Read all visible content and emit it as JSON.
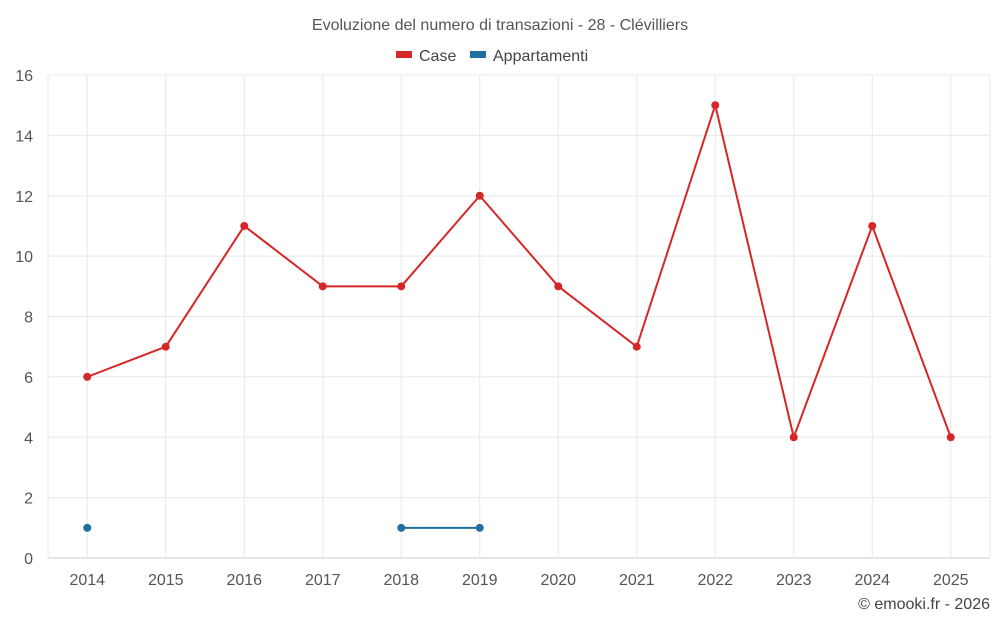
{
  "chart_data": {
    "type": "line",
    "title": "Evoluzione del numero di transazioni - 28 - Clévilliers",
    "categories": [
      "2014",
      "2015",
      "2016",
      "2017",
      "2018",
      "2019",
      "2020",
      "2021",
      "2022",
      "2023",
      "2024",
      "2025"
    ],
    "ylim": [
      0,
      16
    ],
    "yticks": [
      0,
      2,
      4,
      6,
      8,
      10,
      12,
      14,
      16
    ],
    "series": [
      {
        "name": "Case",
        "color": "#d62728",
        "values": [
          6,
          7,
          11,
          9,
          9,
          12,
          9,
          7,
          15,
          4,
          11,
          4
        ]
      },
      {
        "name": "Appartamenti",
        "color": "#1f6fa3",
        "values": [
          1,
          null,
          null,
          null,
          1,
          1,
          null,
          null,
          null,
          null,
          null,
          null
        ]
      }
    ],
    "grid": true,
    "legend_position": "top-center"
  },
  "credit": "© emooki.fr - 2026"
}
